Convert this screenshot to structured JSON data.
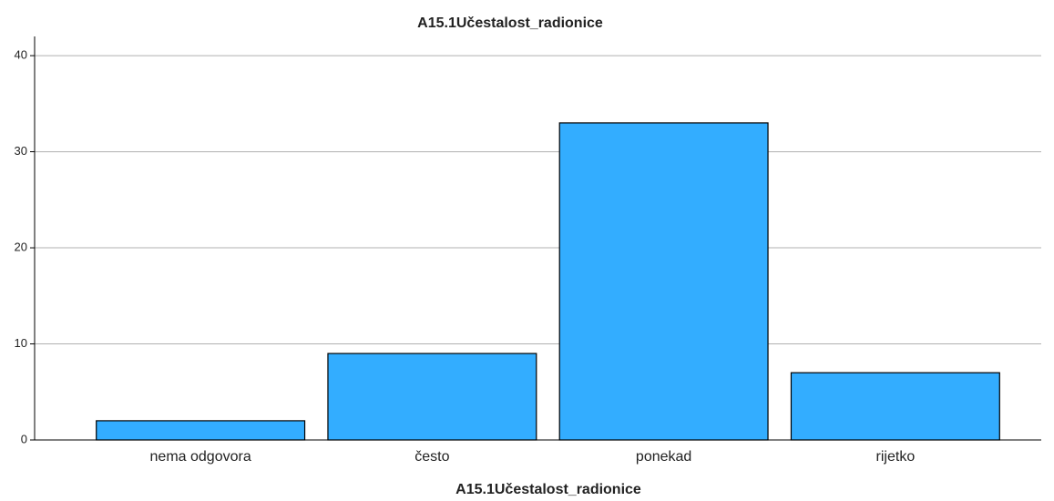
{
  "chart_data": {
    "type": "bar",
    "title": "A15.1Učestalost_radionice",
    "x_label": "A15.1Učestalost_radionice",
    "categories": [
      "nema odgovora",
      "često",
      "ponekad",
      "rijetko"
    ],
    "values": [
      2,
      9,
      33,
      7
    ],
    "color": "#33adff",
    "ylim": [
      0,
      42
    ],
    "yticks": [
      0,
      10,
      20,
      30,
      40
    ],
    "grid": true
  }
}
